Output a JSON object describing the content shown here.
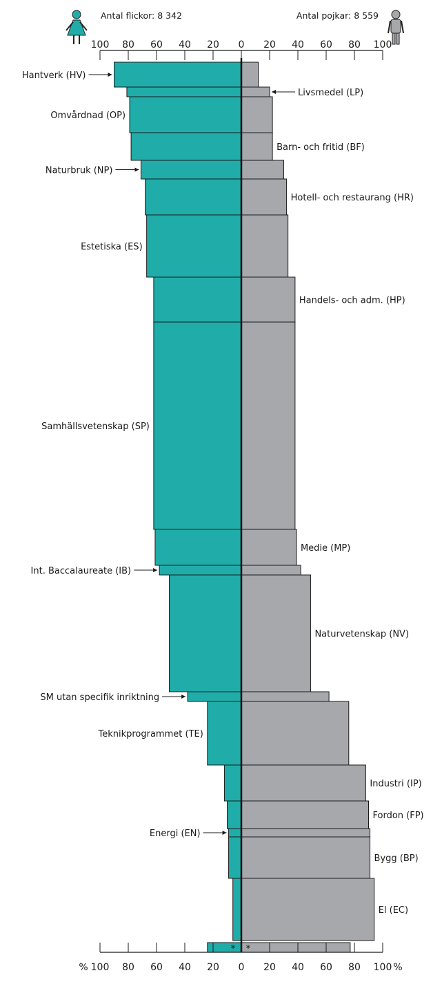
{
  "colors": {
    "girls": "#20ada9",
    "boys": "#a7a8ab",
    "axis": "#1a1a1a"
  },
  "icons": {
    "girls": "woman-icon",
    "boys": "man-icon"
  },
  "chart_data": {
    "type": "bar",
    "orientation": "horizontal-diverging",
    "title": "",
    "girls_count_label": "Antal flickor: 8 342",
    "boys_count_label": "Antal pojkar: 8 559",
    "percent_sign": "%",
    "tick_labels_left": [
      "100",
      "80",
      "60",
      "40",
      "20",
      "0"
    ],
    "tick_labels_right": [
      "20",
      "40",
      "60",
      "80",
      "100"
    ],
    "bottom_tick_labels_left": [
      "100",
      "80",
      "60",
      "40",
      "20",
      "0"
    ],
    "bottom_tick_labels_right": [
      "20",
      "40",
      "60",
      "80",
      "100"
    ],
    "xlim": [
      0,
      100
    ],
    "bar_thickness_meaning": "share of students",
    "categories": [
      {
        "name": "Hantverk (HV)",
        "girls_pct": 90,
        "boys_pct": 12,
        "thickness": 36,
        "label_side": "left",
        "arrow": true
      },
      {
        "name": "Livsmedel (LP)",
        "girls_pct": 81,
        "boys_pct": 20,
        "thickness": 14,
        "label_side": "right",
        "arrow": true
      },
      {
        "name": "Omvårdnad (OP)",
        "girls_pct": 79,
        "boys_pct": 22,
        "thickness": 52,
        "label_side": "left",
        "arrow": false
      },
      {
        "name": "Barn- och fritid (BF)",
        "girls_pct": 78,
        "boys_pct": 22,
        "thickness": 40,
        "label_side": "right",
        "arrow": false
      },
      {
        "name": "Naturbruk (NP)",
        "girls_pct": 71,
        "boys_pct": 30,
        "thickness": 27,
        "label_side": "left",
        "arrow": true
      },
      {
        "name": "Hotell- och restaurang (HR)",
        "girls_pct": 68,
        "boys_pct": 32,
        "thickness": 52,
        "label_side": "right",
        "arrow": false
      },
      {
        "name": "Estetiska (ES)",
        "girls_pct": 67,
        "boys_pct": 33,
        "thickness": 90,
        "label_side": "left",
        "arrow": false
      },
      {
        "name": "Handels- och adm. (HP)",
        "girls_pct": 62,
        "boys_pct": 38,
        "thickness": 65,
        "label_side": "right",
        "arrow": false
      },
      {
        "name": "Samhällsvetenskap (SP)",
        "girls_pct": 62,
        "boys_pct": 38,
        "thickness": 300,
        "label_side": "left",
        "arrow": false
      },
      {
        "name": "Medie (MP)",
        "girls_pct": 61,
        "boys_pct": 39,
        "thickness": 52,
        "label_side": "right",
        "arrow": false
      },
      {
        "name": "Int. Baccalaureate (IB)",
        "girls_pct": 58,
        "boys_pct": 42,
        "thickness": 14,
        "label_side": "left",
        "arrow": true
      },
      {
        "name": "Naturvetenskap (NV)",
        "girls_pct": 51,
        "boys_pct": 49,
        "thickness": 169,
        "label_side": "right",
        "arrow": false
      },
      {
        "name": "SM utan specifik inriktning",
        "girls_pct": 38,
        "boys_pct": 62,
        "thickness": 14,
        "label_side": "left",
        "arrow": true
      },
      {
        "name": "Teknikprogrammet (TE)",
        "girls_pct": 24,
        "boys_pct": 76,
        "thickness": 92,
        "label_side": "left",
        "arrow": false
      },
      {
        "name": "Industri (IP)",
        "girls_pct": 12,
        "boys_pct": 88,
        "thickness": 52,
        "label_side": "right",
        "arrow": false
      },
      {
        "name": "Fordon (FP)",
        "girls_pct": 10,
        "boys_pct": 90,
        "thickness": 40,
        "label_side": "right",
        "arrow": false
      },
      {
        "name": "Energi (EN)",
        "girls_pct": 9,
        "boys_pct": 91,
        "thickness": 12,
        "label_side": "left",
        "arrow": true
      },
      {
        "name": "Bygg (BP)",
        "girls_pct": 9,
        "boys_pct": 91,
        "thickness": 60,
        "label_side": "right",
        "arrow": false
      },
      {
        "name": "El (EC)",
        "girls_pct": 6,
        "boys_pct": 94,
        "thickness": 90,
        "label_side": "right",
        "arrow": false
      }
    ],
    "bottom_bar": {
      "girls_pct": 24,
      "boys_pct": 77,
      "thickness": 14,
      "marker": "*"
    }
  }
}
